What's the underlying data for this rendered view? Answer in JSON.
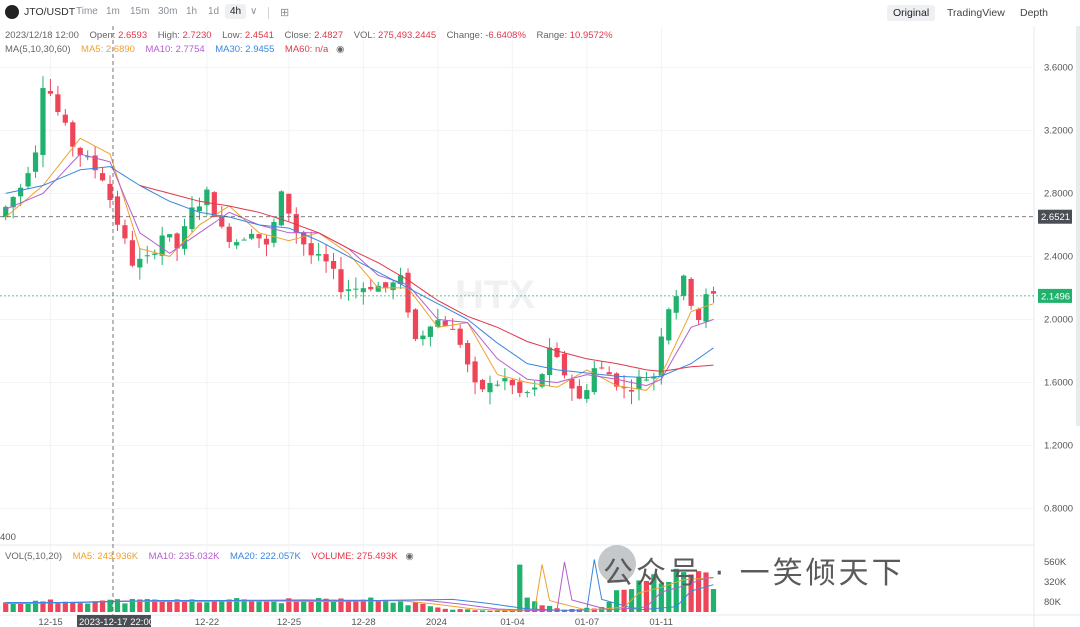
{
  "toolbar": {
    "symbol": "JTO/USDT",
    "intervals": [
      "Time",
      "1m",
      "15m",
      "30m",
      "1h",
      "1d",
      "4h"
    ],
    "active_interval": "4h",
    "views": [
      "Original",
      "TradingView",
      "Depth"
    ],
    "active_view": "Original"
  },
  "ohlc": {
    "date": "2023/12/18 12:00",
    "open_label": "Open:",
    "open": "2.6593",
    "high_label": "High:",
    "high": "2.7230",
    "low_label": "Low:",
    "low": "2.4541",
    "close_label": "Close:",
    "close": "2.4827",
    "vol_label": "VOL:",
    "vol": "275,493.2445",
    "change_label": "Change:",
    "change": "-6.6408%",
    "range_label": "Range:",
    "range": "10.9572%"
  },
  "ma": {
    "title": "MA(5,10,30,60)",
    "ma5": "MA5: 2.6890",
    "ma10": "MA10: 2.7754",
    "ma30": "MA30: 2.9455",
    "ma60": "MA60: n/a"
  },
  "vol": {
    "title": "VOL(5,10,20)",
    "ma5": "MA5: 243.936K",
    "ma10": "MA10: 235.032K",
    "ma20": "MA20: 222.057K",
    "volume": "VOLUME: 275.493K"
  },
  "price_axis": [
    "3.6000",
    "3.2000",
    "2.8000",
    "2.4000",
    "2.0000",
    "1.6000",
    "1.2000",
    "0.8000"
  ],
  "vol_axis": [
    "560K",
    "320K",
    "80K"
  ],
  "crosshair_price": "2.6521",
  "last_price": "2.1496",
  "crosshair_time": "2023-12-17 22:00",
  "dates": [
    "12-15",
    "12-22",
    "12-25",
    "12-28",
    "2024",
    "01-04",
    "01-07",
    "01-11"
  ],
  "left_cut_label": "400",
  "watermark_logo": "HTX",
  "watermark_text": "公众号 · 一笑倾天下",
  "colors": {
    "up": "#20b26c",
    "down": "#ef4559",
    "ma5": "#f0a030",
    "ma10": "#b45ecf",
    "ma30": "#3a86e0",
    "ma60": "#e0384b"
  },
  "chart_data": {
    "type": "candlestick",
    "y_range": [
      0.6,
      3.85
    ],
    "ma_lines": {
      "ma5": [
        [
          0,
          2.65
        ],
        [
          5,
          2.85
        ],
        [
          10,
          3.15
        ],
        [
          14,
          3.05
        ],
        [
          18,
          2.45
        ],
        [
          22,
          2.4
        ],
        [
          26,
          2.6
        ],
        [
          30,
          2.72
        ],
        [
          34,
          2.55
        ],
        [
          38,
          2.5
        ],
        [
          42,
          2.55
        ],
        [
          46,
          2.42
        ],
        [
          50,
          2.2
        ],
        [
          54,
          2.2
        ],
        [
          58,
          1.95
        ],
        [
          62,
          1.98
        ],
        [
          66,
          1.65
        ],
        [
          70,
          1.6
        ],
        [
          74,
          1.57
        ],
        [
          78,
          1.68
        ],
        [
          82,
          1.58
        ],
        [
          86,
          1.55
        ],
        [
          88,
          1.65
        ],
        [
          92,
          2.05
        ],
        [
          95,
          2.1
        ]
      ],
      "ma10": [
        [
          0,
          2.7
        ],
        [
          5,
          2.8
        ],
        [
          10,
          3.05
        ],
        [
          14,
          3.0
        ],
        [
          18,
          2.55
        ],
        [
          22,
          2.42
        ],
        [
          26,
          2.55
        ],
        [
          30,
          2.68
        ],
        [
          34,
          2.6
        ],
        [
          38,
          2.55
        ],
        [
          42,
          2.55
        ],
        [
          46,
          2.45
        ],
        [
          50,
          2.28
        ],
        [
          54,
          2.22
        ],
        [
          58,
          2.0
        ],
        [
          62,
          1.98
        ],
        [
          66,
          1.75
        ],
        [
          70,
          1.62
        ],
        [
          74,
          1.6
        ],
        [
          78,
          1.65
        ],
        [
          82,
          1.62
        ],
        [
          86,
          1.58
        ],
        [
          88,
          1.62
        ],
        [
          92,
          1.95
        ],
        [
          95,
          2.0
        ]
      ],
      "ma30": [
        [
          0,
          2.8
        ],
        [
          5,
          2.85
        ],
        [
          10,
          2.95
        ],
        [
          14,
          2.97
        ],
        [
          18,
          2.85
        ],
        [
          22,
          2.75
        ],
        [
          26,
          2.68
        ],
        [
          30,
          2.65
        ],
        [
          34,
          2.6
        ],
        [
          38,
          2.58
        ],
        [
          42,
          2.5
        ],
        [
          46,
          2.4
        ],
        [
          50,
          2.3
        ],
        [
          54,
          2.2
        ],
        [
          58,
          2.1
        ],
        [
          62,
          2.0
        ],
        [
          66,
          1.85
        ],
        [
          70,
          1.72
        ],
        [
          74,
          1.68
        ],
        [
          78,
          1.66
        ],
        [
          82,
          1.64
        ],
        [
          86,
          1.63
        ],
        [
          88,
          1.64
        ],
        [
          92,
          1.72
        ],
        [
          95,
          1.82
        ]
      ],
      "ma60": [
        [
          18,
          2.85
        ],
        [
          22,
          2.8
        ],
        [
          26,
          2.75
        ],
        [
          30,
          2.72
        ],
        [
          34,
          2.68
        ],
        [
          38,
          2.62
        ],
        [
          42,
          2.55
        ],
        [
          46,
          2.45
        ],
        [
          50,
          2.36
        ],
        [
          54,
          2.25
        ],
        [
          58,
          2.12
        ],
        [
          62,
          2.02
        ],
        [
          66,
          1.95
        ],
        [
          70,
          1.86
        ],
        [
          74,
          1.8
        ],
        [
          78,
          1.75
        ],
        [
          82,
          1.72
        ],
        [
          86,
          1.68
        ],
        [
          88,
          1.67
        ],
        [
          92,
          1.7
        ],
        [
          95,
          1.71
        ]
      ]
    },
    "price_path": [
      [
        0,
        2.65
      ],
      [
        3,
        2.85
      ],
      [
        5,
        3.1
      ],
      [
        6,
        3.55
      ],
      [
        8,
        3.3
      ],
      [
        10,
        3.1
      ],
      [
        12,
        3.0
      ],
      [
        14,
        2.9
      ],
      [
        16,
        2.6
      ],
      [
        18,
        2.35
      ],
      [
        20,
        2.38
      ],
      [
        22,
        2.55
      ],
      [
        24,
        2.45
      ],
      [
        26,
        2.7
      ],
      [
        28,
        2.8
      ],
      [
        30,
        2.55
      ],
      [
        32,
        2.5
      ],
      [
        34,
        2.58
      ],
      [
        36,
        2.45
      ],
      [
        38,
        2.8
      ],
      [
        40,
        2.55
      ],
      [
        42,
        2.4
      ],
      [
        44,
        2.35
      ],
      [
        46,
        2.2
      ],
      [
        48,
        2.2
      ],
      [
        50,
        2.22
      ],
      [
        52,
        2.2
      ],
      [
        54,
        2.25
      ],
      [
        56,
        1.85
      ],
      [
        58,
        2.0
      ],
      [
        60,
        1.98
      ],
      [
        62,
        1.85
      ],
      [
        64,
        1.55
      ],
      [
        66,
        1.58
      ],
      [
        68,
        1.62
      ],
      [
        70,
        1.52
      ],
      [
        72,
        1.55
      ],
      [
        74,
        1.8
      ],
      [
        76,
        1.65
      ],
      [
        78,
        1.48
      ],
      [
        80,
        1.7
      ],
      [
        82,
        1.65
      ],
      [
        84,
        1.55
      ],
      [
        86,
        1.62
      ],
      [
        88,
        1.65
      ],
      [
        89,
        1.95
      ],
      [
        90,
        2.1
      ],
      [
        92,
        2.25
      ],
      [
        93,
        2.1
      ],
      [
        94,
        2.0
      ],
      [
        95,
        2.15
      ]
    ],
    "volume_profile_K": [
      [
        0,
        90
      ],
      [
        10,
        110
      ],
      [
        20,
        110
      ],
      [
        30,
        115
      ],
      [
        40,
        110
      ],
      [
        50,
        120
      ],
      [
        55,
        80
      ],
      [
        60,
        30
      ],
      [
        65,
        15
      ],
      [
        68,
        20
      ],
      [
        69,
        500
      ],
      [
        70,
        120
      ],
      [
        75,
        20
      ],
      [
        80,
        50
      ],
      [
        82,
        200
      ],
      [
        85,
        260
      ],
      [
        88,
        340
      ],
      [
        92,
        360
      ],
      [
        95,
        300
      ]
    ]
  }
}
